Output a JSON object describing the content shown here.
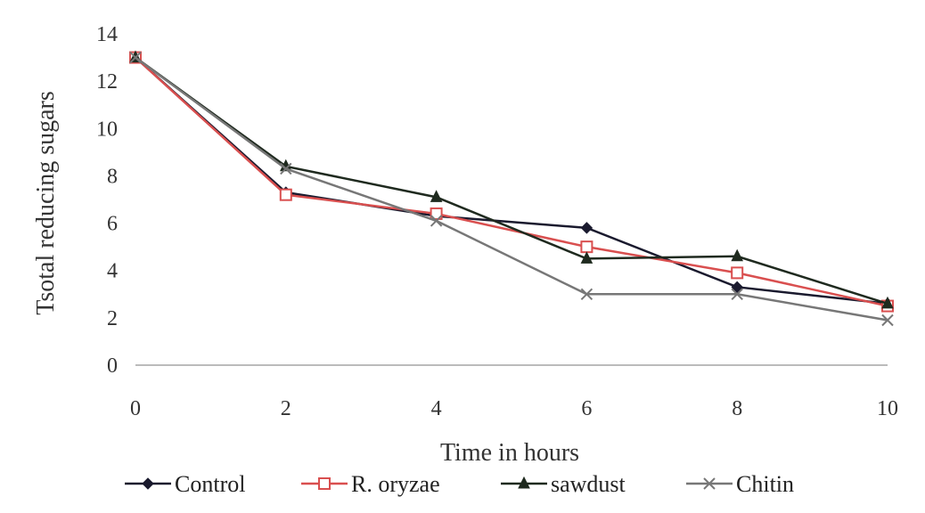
{
  "chart_data": {
    "type": "line",
    "title": "",
    "xlabel": "Time in hours",
    "ylabel": "Tsotal reducing sugars",
    "x": [
      0,
      2,
      4,
      6,
      8,
      10
    ],
    "xlim": [
      0,
      10
    ],
    "ylim": [
      0,
      14
    ],
    "yticks": [
      0,
      2,
      4,
      6,
      8,
      10,
      12,
      14
    ],
    "xticks": [
      0,
      2,
      4,
      6,
      8,
      10
    ],
    "grid": false,
    "legend_position": "bottom",
    "series": [
      {
        "name": "Control",
        "values": [
          13.0,
          7.3,
          6.3,
          5.8,
          3.3,
          2.6
        ],
        "marker": "filled-diamond",
        "color": "#1a1a2e"
      },
      {
        "name": "R. oryzae",
        "values": [
          13.0,
          7.2,
          6.4,
          5.0,
          3.9,
          2.5
        ],
        "marker": "open-square",
        "color": "#d94f4f"
      },
      {
        "name": "sawdust",
        "values": [
          13.0,
          8.4,
          7.1,
          4.5,
          4.6,
          2.6
        ],
        "marker": "filled-triangle",
        "color": "#1f2a1f"
      },
      {
        "name": "Chitin",
        "values": [
          13.0,
          8.3,
          6.1,
          3.0,
          3.0,
          1.9
        ],
        "marker": "x-mark",
        "color": "#777777"
      }
    ]
  }
}
